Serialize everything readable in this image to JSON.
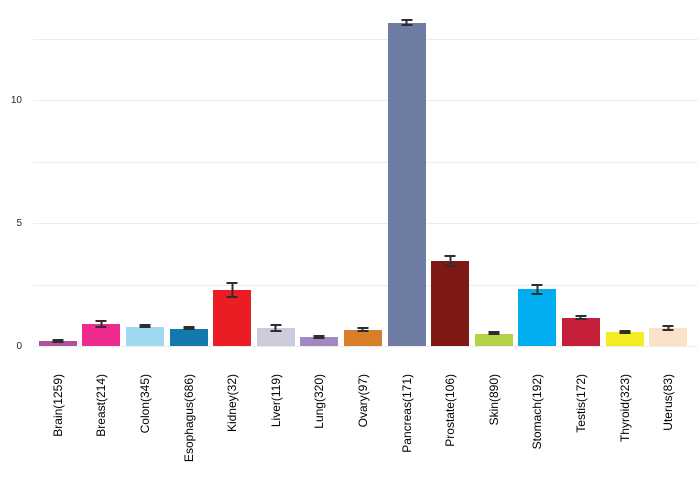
{
  "chart_data": {
    "type": "bar",
    "title": "",
    "xlabel": "",
    "ylabel": "",
    "categories": [
      "Brain(1259)",
      "Breast(214)",
      "Colon(345)",
      "Esophagus(686)",
      "Kidney(32)",
      "Liver(119)",
      "Lung(320)",
      "Ovary(97)",
      "Pancreas(171)",
      "Prostate(106)",
      "Skin(890)",
      "Stomach(192)",
      "Testis(172)",
      "Thyroid(323)",
      "Uterus(83)"
    ],
    "values": [
      0.21,
      0.9,
      0.78,
      0.7,
      2.28,
      0.73,
      0.35,
      0.67,
      13.15,
      3.46,
      0.5,
      2.3,
      1.15,
      0.55,
      0.72
    ],
    "errors": [
      0.07,
      0.15,
      0.06,
      0.05,
      0.32,
      0.18,
      0.08,
      0.12,
      0.15,
      0.24,
      0.06,
      0.22,
      0.1,
      0.07,
      0.12
    ],
    "bar_colors": [
      "#B0509E",
      "#EE2A8D",
      "#A0D8F1",
      "#1279AD",
      "#EC1C24",
      "#CBCBDC",
      "#A287C1",
      "#D87E28",
      "#6F7DA5",
      "#7E1815",
      "#B2D348",
      "#00AEEF",
      "#C51F3B",
      "#F5EB21",
      "#F9E2C7"
    ],
    "ylim": [
      0,
      13.7
    ],
    "yticks": [
      "0",
      "5",
      "10"
    ],
    "ytick_values": [
      0,
      5,
      10
    ],
    "gridline_values": [
      0,
      2.5,
      5,
      7.5,
      10,
      12.5
    ],
    "grid": "horizontal",
    "legend_position": "none"
  },
  "style_colors": {
    "background": "#ffffff",
    "gridline": "#ededed",
    "error_bar": "#2e2e2e",
    "tick_text": "#262626",
    "xlabel_text": "#000000"
  }
}
